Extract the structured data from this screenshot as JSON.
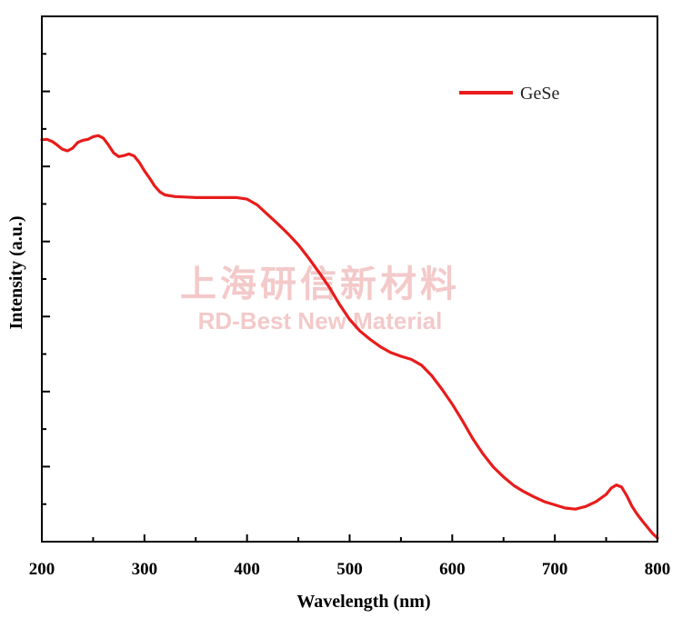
{
  "chart_data": {
    "type": "line",
    "title": "",
    "xlabel": "Wavelength (nm)",
    "ylabel": "Intensity (a.u.)",
    "xlim": [
      200,
      800
    ],
    "ylim": [
      0,
      1
    ],
    "x_ticks": [
      "200",
      "300",
      "400",
      "500",
      "600",
      "700",
      "800"
    ],
    "y_tick_labels_visible": false,
    "grid": false,
    "legend_position": "top-right",
    "series": [
      {
        "name": "GeSe",
        "color": "#e81c1c",
        "points": [
          [
            200,
            0.765
          ],
          [
            205,
            0.766
          ],
          [
            210,
            0.762
          ],
          [
            215,
            0.755
          ],
          [
            220,
            0.747
          ],
          [
            225,
            0.744
          ],
          [
            230,
            0.749
          ],
          [
            235,
            0.76
          ],
          [
            240,
            0.764
          ],
          [
            245,
            0.766
          ],
          [
            250,
            0.771
          ],
          [
            255,
            0.773
          ],
          [
            260,
            0.768
          ],
          [
            265,
            0.755
          ],
          [
            270,
            0.74
          ],
          [
            275,
            0.733
          ],
          [
            280,
            0.735
          ],
          [
            285,
            0.738
          ],
          [
            290,
            0.734
          ],
          [
            295,
            0.722
          ],
          [
            300,
            0.706
          ],
          [
            305,
            0.692
          ],
          [
            310,
            0.677
          ],
          [
            315,
            0.666
          ],
          [
            320,
            0.66
          ],
          [
            330,
            0.657
          ],
          [
            340,
            0.656
          ],
          [
            350,
            0.655
          ],
          [
            360,
            0.655
          ],
          [
            370,
            0.655
          ],
          [
            380,
            0.655
          ],
          [
            390,
            0.655
          ],
          [
            400,
            0.652
          ],
          [
            410,
            0.641
          ],
          [
            420,
            0.623
          ],
          [
            430,
            0.605
          ],
          [
            440,
            0.586
          ],
          [
            450,
            0.565
          ],
          [
            460,
            0.54
          ],
          [
            470,
            0.513
          ],
          [
            480,
            0.485
          ],
          [
            490,
            0.452
          ],
          [
            500,
            0.423
          ],
          [
            510,
            0.401
          ],
          [
            520,
            0.385
          ],
          [
            530,
            0.371
          ],
          [
            540,
            0.36
          ],
          [
            550,
            0.353
          ],
          [
            560,
            0.347
          ],
          [
            570,
            0.336
          ],
          [
            580,
            0.316
          ],
          [
            590,
            0.29
          ],
          [
            600,
            0.262
          ],
          [
            610,
            0.23
          ],
          [
            620,
            0.196
          ],
          [
            630,
            0.167
          ],
          [
            640,
            0.142
          ],
          [
            650,
            0.123
          ],
          [
            660,
            0.107
          ],
          [
            670,
            0.095
          ],
          [
            680,
            0.085
          ],
          [
            690,
            0.076
          ],
          [
            700,
            0.07
          ],
          [
            710,
            0.064
          ],
          [
            720,
            0.062
          ],
          [
            730,
            0.067
          ],
          [
            740,
            0.076
          ],
          [
            750,
            0.09
          ],
          [
            755,
            0.102
          ],
          [
            760,
            0.108
          ],
          [
            765,
            0.104
          ],
          [
            770,
            0.088
          ],
          [
            775,
            0.068
          ],
          [
            780,
            0.053
          ],
          [
            785,
            0.04
          ],
          [
            790,
            0.028
          ],
          [
            795,
            0.016
          ],
          [
            800,
            0.007
          ]
        ]
      }
    ]
  },
  "watermark": {
    "chinese": "上海研信新材料",
    "english": "RD-Best New Material",
    "color": "#f3c9c9"
  }
}
